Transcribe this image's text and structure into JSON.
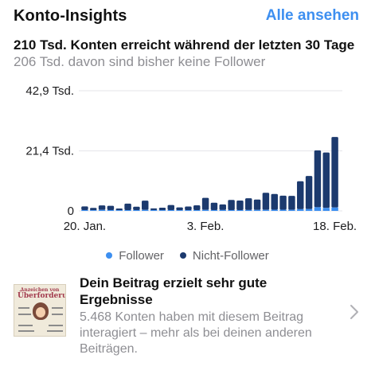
{
  "header": {
    "title": "Konto-Insights",
    "see_all": "Alle ansehen"
  },
  "reach": {
    "headline": "210 Tsd. Konten erreicht während der letzten 30 Tage",
    "subline": "206 Tsd. davon sind bisher keine Follower"
  },
  "colors": {
    "accent": "#3d8ff0",
    "follower": "#3d8ff0",
    "non_follower": "#1c3a6e"
  },
  "chart_data": {
    "type": "bar",
    "stacked": true,
    "y_tick_labels": [
      "42,9 Tsd.",
      "21,4 Tsd.",
      "0"
    ],
    "y_ticks": [
      42900,
      21400,
      0
    ],
    "ylim": [
      0,
      42900
    ],
    "x_tick_labels": [
      "20. Jan.",
      "3. Feb.",
      "18. Feb."
    ],
    "x_tick_positions": [
      0,
      14,
      29
    ],
    "grid": "horizontal",
    "series": [
      {
        "name": "Follower",
        "values": [
          300,
          250,
          350,
          300,
          250,
          280,
          300,
          350,
          300,
          250,
          300,
          250,
          250,
          280,
          350,
          300,
          320,
          300,
          300,
          320,
          350,
          380,
          420,
          420,
          380,
          600,
          650,
          1300,
          1050,
          1200
        ]
      },
      {
        "name": "Nicht-Follower",
        "values": [
          1300,
          800,
          1600,
          1500,
          600,
          2300,
          1200,
          3300,
          600,
          900,
          1800,
          1000,
          1300,
          1700,
          4300,
          2600,
          2000,
          3600,
          3400,
          4200,
          3700,
          6100,
          5600,
          5000,
          5000,
          10000,
          11800,
          20300,
          19800,
          25200
        ]
      }
    ],
    "legend": [
      "Follower",
      "Nicht-Follower"
    ],
    "legend_position": "bottom"
  },
  "post": {
    "thumbnail_title_line1": "Anzeichen von",
    "thumbnail_title_line2": "Überforderung",
    "title": "Dein Beitrag erzielt sehr gute Ergebnisse",
    "body": "5.468 Konten haben mit diesem Beitrag interagiert – mehr als bei deinen anderen Beiträgen.",
    "chevron_icon": "chevron-right-icon"
  }
}
